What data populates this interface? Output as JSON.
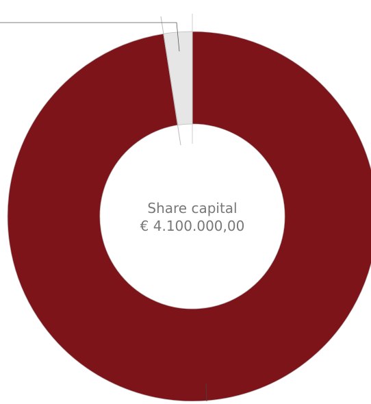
{
  "chart_data": {
    "type": "pie",
    "variant": "donut",
    "center_label": {
      "title": "Share capital",
      "value": "€ 4.100.000,00"
    },
    "slices": [
      {
        "value": 97.5,
        "color": "#7d1419"
      },
      {
        "value": 2.5,
        "color": "#e6e6e6"
      }
    ],
    "slice_border_color": "#bbbbbb",
    "leader_line_color": "#555555",
    "legend": "none"
  }
}
